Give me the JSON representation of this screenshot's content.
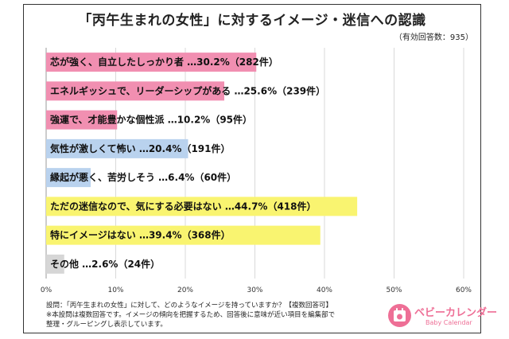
{
  "header": {
    "title": "「丙午生まれの女性」に対するイメージ・迷信への認識",
    "sample_note": "（有効回答数：935）"
  },
  "chart_data": {
    "type": "bar",
    "orientation": "horizontal",
    "categories": [
      "芯が強く、自立したしっかり者 …30.2%（282件）",
      "エネルギッシュで、リーダーシップがある …25.6%（239件）",
      "強運で、才能豊かな個性派 …10.2%（95件）",
      "気性が激しくて怖い …20.4%（191件）",
      "縁起が悪く、苦労しそう …6.4%（60件）",
      "ただの迷信なので、気にする必要はない …44.7%（418件）",
      "特にイメージはない …39.4%（368件）",
      "その他 …2.6%（24件）"
    ],
    "values": [
      30.2,
      25.6,
      10.2,
      20.4,
      6.4,
      44.7,
      39.4,
      2.6
    ],
    "colors": [
      "#f18fb1",
      "#f18fb1",
      "#f18fb1",
      "#b9d2ee",
      "#b9d2ee",
      "#f9f470",
      "#f9f470",
      "#d6d6d6"
    ],
    "xlim": [
      0,
      60
    ],
    "xticks": [
      "0%",
      "10%",
      "20%",
      "30%",
      "40%",
      "50%",
      "60%"
    ],
    "grid": "vertical",
    "legend": "none"
  },
  "notes": {
    "line1": "設問：「丙午生まれの女性」に対して、どのようなイメージを持っていますか？【複数回答可】",
    "line2": "※本設問は複数回答です。イメージの傾向を把握するため、回答後に意味が近い項目を編集部で",
    "line3": "整理・グルーピングし表示しています。"
  },
  "logo": {
    "name": "ベビーカレンダー",
    "subname": "Baby Calendar",
    "icon": "calendar-baby-icon",
    "color": "#ee6f96"
  }
}
